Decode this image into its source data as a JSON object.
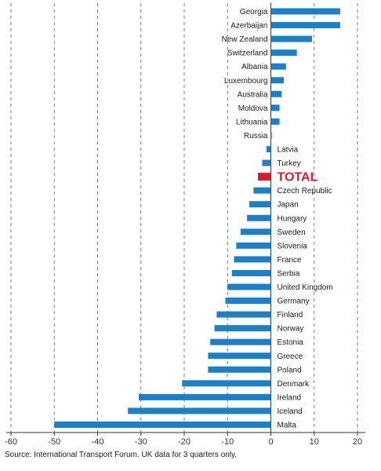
{
  "chart_data": {
    "type": "bar",
    "orientation": "horizontal",
    "categories": [
      "Georgia",
      "Azerbaijan",
      "New Zealand",
      "Switzerland",
      "Albania",
      "Luxembourg",
      "Australia",
      "Moldova",
      "Lithuania",
      "Russia",
      "Latvia",
      "Turkey",
      "TOTAL",
      "Czech Republic",
      "Japan",
      "Hungary",
      "Sweden",
      "Slovenia",
      "France",
      "Serbia",
      "United Kingdom",
      "Germany",
      "Finland",
      "Norway",
      "Estonia",
      "Greece",
      "Poland",
      "Denmark",
      "Ireland",
      "Iceland",
      "Malta"
    ],
    "values": [
      16,
      16,
      9.5,
      6,
      3.5,
      3,
      2.5,
      2,
      2,
      0.2,
      -1,
      -2,
      -3,
      -4,
      -5,
      -5.5,
      -7,
      -8,
      -8.5,
      -9,
      -10,
      -10.5,
      -12.5,
      -13,
      -14,
      -14.5,
      -14.5,
      -20.5,
      -30.5,
      -33,
      -50
    ],
    "highlight": "TOTAL",
    "xlim": [
      -60,
      20
    ],
    "xticks": [
      "-60",
      "-50",
      "-40",
      "-30",
      "-20",
      "-10",
      "0",
      "10",
      "20"
    ],
    "grid": "vertical dashed",
    "bar_color": "#1f7fc4",
    "highlight_color": "#d3202f",
    "source": "Source: International Transport Forum. UK data for 3 quarters only."
  }
}
